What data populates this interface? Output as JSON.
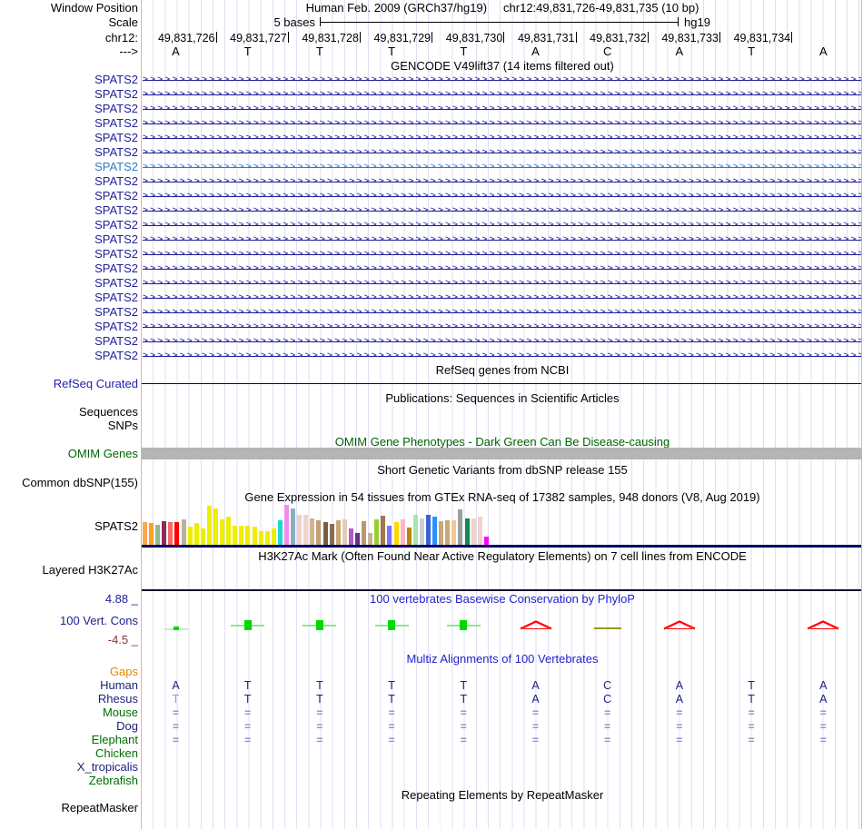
{
  "header": {
    "window_position_label": "Window Position",
    "assembly_text": "Human Feb. 2009 (GRCh37/hg19)",
    "range_text": "chr12:49,831,726-49,831,735 (10 bp)",
    "scale_label": "Scale",
    "scale_bases_text": "5 bases",
    "scale_genome_text": "hg19",
    "chrom_label": "chr12:",
    "strand_label": "--->",
    "coordinates": [
      "49,831,726",
      "49,831,727",
      "49,831,728",
      "49,831,729",
      "49,831,730",
      "49,831,731",
      "49,831,732",
      "49,831,733",
      "49,831,734"
    ],
    "bases": [
      "A",
      "T",
      "T",
      "T",
      "T",
      "A",
      "C",
      "A",
      "T",
      "A"
    ]
  },
  "tracks": {
    "gencode": {
      "title": "GENCODE V49lift37 (14 items filtered out)",
      "rows": [
        {
          "label": "SPATS2"
        },
        {
          "label": "SPATS2"
        },
        {
          "label": "SPATS2"
        },
        {
          "label": "SPATS2"
        },
        {
          "label": "SPATS2"
        },
        {
          "label": "SPATS2"
        },
        {
          "label": "SPATS2",
          "highlighted": true
        },
        {
          "label": "SPATS2"
        },
        {
          "label": "SPATS2"
        },
        {
          "label": "SPATS2"
        },
        {
          "label": "SPATS2"
        },
        {
          "label": "SPATS2"
        },
        {
          "label": "SPATS2"
        },
        {
          "label": "SPATS2"
        },
        {
          "label": "SPATS2"
        },
        {
          "label": "SPATS2"
        },
        {
          "label": "SPATS2"
        },
        {
          "label": "SPATS2"
        },
        {
          "label": "SPATS2"
        },
        {
          "label": "SPATS2"
        }
      ]
    },
    "refseq": {
      "title": "RefSeq genes from NCBI",
      "label": "RefSeq Curated"
    },
    "publications": {
      "title": "Publications: Sequences in Scientific Articles",
      "label": "Sequences"
    },
    "snps": {
      "label": "SNPs"
    },
    "omim": {
      "title": "OMIM Gene Phenotypes - Dark Green Can Be Disease-causing",
      "label": "OMIM Genes"
    },
    "dbsnp": {
      "title": "Short Genetic Variants from dbSNP release 155",
      "label": "Common dbSNP(155)"
    },
    "gtex": {
      "title": "Gene Expression in 54 tissues from GTEx RNA-seq of 17382 samples, 948 donors (V8, Aug 2019)",
      "label": "SPATS2"
    },
    "h3k27ac": {
      "title": "H3K27Ac Mark (Often Found Near Active Regulatory Elements) on 7 cell lines from ENCODE",
      "label": "Layered H3K27Ac"
    },
    "phylop": {
      "title": "100 vertebrates Basewise Conservation by PhyloP",
      "label": "100 Vert. Cons",
      "max_label": "4.88 _",
      "min_label": "-4.5 _",
      "axis_max": 4.88,
      "axis_min": -4.5,
      "columns": [
        "positive-small",
        "positive",
        "positive",
        "positive",
        "positive",
        "negative",
        "near-zero",
        "negative",
        "none",
        "negative"
      ]
    },
    "multiz": {
      "title": "Multiz Alignments of 100 Vertebrates",
      "species": [
        {
          "name": "Gaps",
          "label_color": "orange",
          "cells": []
        },
        {
          "name": "Human",
          "label_color": "navy",
          "cells": [
            "A",
            "T",
            "T",
            "T",
            "T",
            "A",
            "C",
            "A",
            "T",
            "A"
          ]
        },
        {
          "name": "Rhesus",
          "label_color": "navy",
          "cells": [
            "T",
            "T",
            "T",
            "T",
            "T",
            "A",
            "C",
            "A",
            "T",
            "A"
          ],
          "muted_cells": [
            0
          ]
        },
        {
          "name": "Mouse",
          "label_color": "green",
          "cells": [
            "=",
            "=",
            "=",
            "=",
            "=",
            "=",
            "=",
            "=",
            "=",
            "="
          ]
        },
        {
          "name": "Dog",
          "label_color": "navy",
          "cells": [
            "=",
            "=",
            "=",
            "=",
            "=",
            "=",
            "=",
            "=",
            "=",
            "="
          ]
        },
        {
          "name": "Elephant",
          "label_color": "green",
          "cells": [
            "=",
            "=",
            "=",
            "=",
            "=",
            "=",
            "=",
            "=",
            "=",
            "="
          ]
        },
        {
          "name": "Chicken",
          "label_color": "green",
          "cells": []
        },
        {
          "name": "X_tropicalis",
          "label_color": "navy",
          "cells": []
        },
        {
          "name": "Zebrafish",
          "label_color": "green",
          "cells": []
        }
      ]
    },
    "repeatmasker": {
      "title": "Repeating Elements by RepeatMasker",
      "label": "RepeatMasker"
    }
  },
  "chart_data": {
    "type": "bar",
    "title": "Gene Expression in 54 tissues from GTEx RNA-seq of 17382 samples, 948 donors (V8, Aug 2019)",
    "gene": "SPATS2",
    "n_bars": 54,
    "note_axis": "relative expression, tissue labels not shown at this zoom",
    "bars": [
      {
        "color": "#FFA54F",
        "height_pct": 57
      },
      {
        "color": "#FF9E27",
        "height_pct": 55
      },
      {
        "color": "#8FBC8F",
        "height_pct": 50
      },
      {
        "color": "#8B2C5E",
        "height_pct": 60
      },
      {
        "color": "#F4695F",
        "height_pct": 57
      },
      {
        "color": "#FF0000",
        "height_pct": 57
      },
      {
        "color": "#BDB09B",
        "height_pct": 64
      },
      {
        "color": "#EEEE00",
        "height_pct": 45
      },
      {
        "color": "#EEEE00",
        "height_pct": 55
      },
      {
        "color": "#EEEE00",
        "height_pct": 42
      },
      {
        "color": "#EEEE00",
        "height_pct": 97
      },
      {
        "color": "#EEEE00",
        "height_pct": 90
      },
      {
        "color": "#EEEE00",
        "height_pct": 64
      },
      {
        "color": "#EEEE00",
        "height_pct": 70
      },
      {
        "color": "#EEEE00",
        "height_pct": 48
      },
      {
        "color": "#EEEE00",
        "height_pct": 48
      },
      {
        "color": "#EEEE00",
        "height_pct": 48
      },
      {
        "color": "#EEEE00",
        "height_pct": 45
      },
      {
        "color": "#EEEE00",
        "height_pct": 34
      },
      {
        "color": "#EEEE00",
        "height_pct": 34
      },
      {
        "color": "#EEEE00",
        "height_pct": 42
      },
      {
        "color": "#1FD8CE",
        "height_pct": 62
      },
      {
        "color": "#F08CF0",
        "height_pct": 100
      },
      {
        "color": "#8BAEC4",
        "height_pct": 90
      },
      {
        "color": "#EFD2CC",
        "height_pct": 74
      },
      {
        "color": "#EFD2CC",
        "height_pct": 74
      },
      {
        "color": "#D2B48C",
        "height_pct": 66
      },
      {
        "color": "#C3A074",
        "height_pct": 62
      },
      {
        "color": "#7A5C44",
        "height_pct": 57
      },
      {
        "color": "#8A6E52",
        "height_pct": 52
      },
      {
        "color": "#C9A877",
        "height_pct": 62
      },
      {
        "color": "#E3CBB8",
        "height_pct": 64
      },
      {
        "color": "#B05BC6",
        "height_pct": 40
      },
      {
        "color": "#6A2D91",
        "height_pct": 30
      },
      {
        "color": "#B89A6F",
        "height_pct": 60
      },
      {
        "color": "#C4B49A",
        "height_pct": 30
      },
      {
        "color": "#9ACD32",
        "height_pct": 64
      },
      {
        "color": "#A07850",
        "height_pct": 72
      },
      {
        "color": "#8470FF",
        "height_pct": 47
      },
      {
        "color": "#FFD700",
        "height_pct": 57
      },
      {
        "color": "#FFB6C1",
        "height_pct": 64
      },
      {
        "color": "#B8860B",
        "height_pct": 44
      },
      {
        "color": "#A8E6A8",
        "height_pct": 74
      },
      {
        "color": "#C7D0D6",
        "height_pct": 67
      },
      {
        "color": "#3A62D8",
        "height_pct": 74
      },
      {
        "color": "#2E90FF",
        "height_pct": 70
      },
      {
        "color": "#C9A877",
        "height_pct": 60
      },
      {
        "color": "#C9A877",
        "height_pct": 62
      },
      {
        "color": "#F5C792",
        "height_pct": 62
      },
      {
        "color": "#9AA0A2",
        "height_pct": 88
      },
      {
        "color": "#0E8A4D",
        "height_pct": 67
      },
      {
        "color": "#EFD2CC",
        "height_pct": 67
      },
      {
        "color": "#EFD2CC",
        "height_pct": 70
      },
      {
        "color": "#FF00FF",
        "height_pct": 20
      }
    ]
  },
  "colors": {
    "gene_navy": "#22229B",
    "gene_highlight": "#2E7CC1",
    "title_blue": "#2222CC",
    "label_blue": "#202092",
    "species_green": "#006E00",
    "omim_green": "#006400",
    "gaps_orange": "#E88A00",
    "axis_maroon": "#8B3434",
    "gridline": "#DFDFF2",
    "track_left_border_pink": "#F4A8A8",
    "omim_bar_gray": "#B5B5B5",
    "refseq_line_navy": "#000080",
    "gtex_baseline_navy": "#000066",
    "h3k27ac_line": "#1A0B33",
    "phylop_positive_green": "#00D800",
    "phylop_negative_red": "#FF0000",
    "phylop_zero_olive": "#9A9A00",
    "align_match_blue": "#8A92C8"
  }
}
